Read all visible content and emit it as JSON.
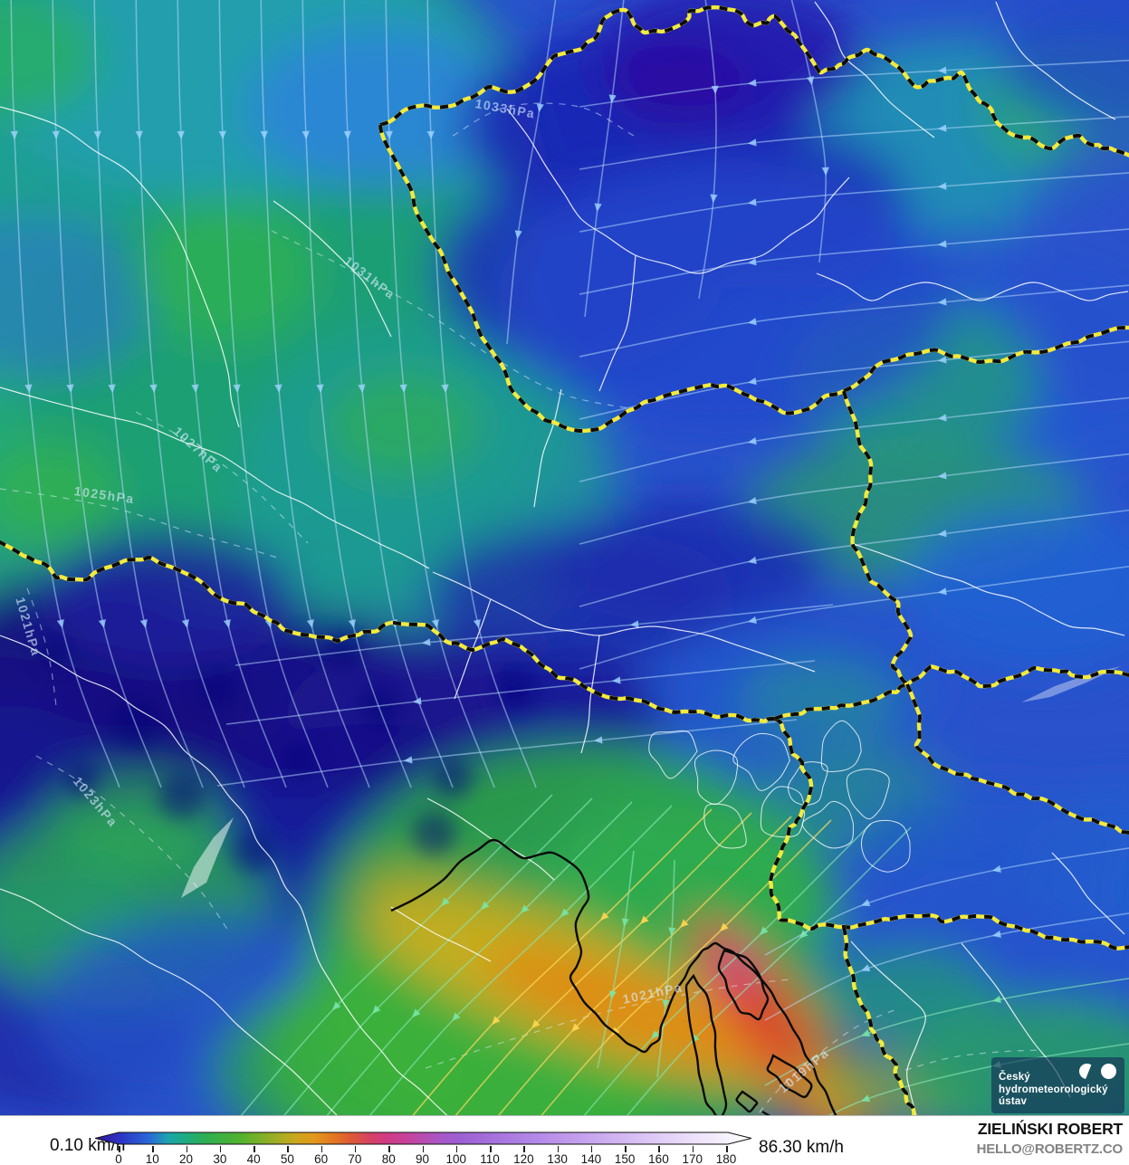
{
  "map": {
    "isobar_labels": [
      {
        "text": "1033hPa"
      },
      {
        "text": "1031hPa"
      },
      {
        "text": "1027hPa"
      },
      {
        "text": "1025hPa"
      },
      {
        "text": "1021hPa"
      },
      {
        "text": "1023hPa"
      },
      {
        "text": "1021hPa"
      },
      {
        "text": "1019hPa"
      }
    ],
    "logo": {
      "line1": "Český",
      "line2": "hydrometeorologický",
      "line3": "ústav"
    }
  },
  "colorbar": {
    "min_label": "0.10 km/h",
    "max_label": "86.30 km/h",
    "unit": "km/h",
    "min_value": 0.1,
    "max_value": 86.3,
    "ticks": [
      0,
      10,
      20,
      30,
      40,
      50,
      60,
      70,
      80,
      90,
      100,
      110,
      120,
      130,
      140,
      150,
      160,
      170,
      180
    ],
    "gradient": [
      {
        "v": 0,
        "c": "#33119e"
      },
      {
        "v": 8,
        "c": "#2b3ac8"
      },
      {
        "v": 15,
        "c": "#2a6ad8"
      },
      {
        "v": 20,
        "c": "#1ba4ae"
      },
      {
        "v": 25,
        "c": "#1fab80"
      },
      {
        "v": 30,
        "c": "#2cae52"
      },
      {
        "v": 40,
        "c": "#52b22e"
      },
      {
        "v": 50,
        "c": "#a2ad24"
      },
      {
        "v": 55,
        "c": "#cba71e"
      },
      {
        "v": 60,
        "c": "#e1991c"
      },
      {
        "v": 65,
        "c": "#e37a20"
      },
      {
        "v": 70,
        "c": "#dd5a34"
      },
      {
        "v": 75,
        "c": "#d74360"
      },
      {
        "v": 80,
        "c": "#d03a85"
      },
      {
        "v": 85,
        "c": "#c84198"
      },
      {
        "v": 95,
        "c": "#a757c9"
      },
      {
        "v": 100,
        "c": "#9c5fd3"
      },
      {
        "v": 120,
        "c": "#b287e7"
      },
      {
        "v": 140,
        "c": "#cdaef1"
      },
      {
        "v": 160,
        "c": "#e7d8f9"
      },
      {
        "v": 180,
        "c": "#ffffff"
      }
    ]
  },
  "watermark": {
    "name": "ZIELIŃSKI ROBERT",
    "email": "HELLO@ROBERTZ.CO"
  }
}
